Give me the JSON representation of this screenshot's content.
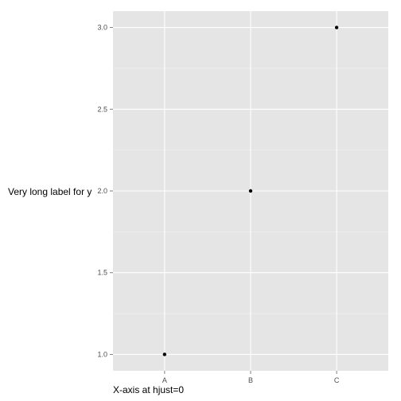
{
  "chart_data": {
    "type": "scatter",
    "categories": [
      "A",
      "B",
      "C"
    ],
    "points": [
      {
        "x": "A",
        "y": 1.0
      },
      {
        "x": "B",
        "y": 2.0
      },
      {
        "x": "C",
        "y": 3.0
      }
    ],
    "xlabel": "X-axis at hjust=0",
    "ylabel": "Very long label for y",
    "ylim": [
      0.9,
      3.1
    ],
    "yticks": [
      1.0,
      1.5,
      2.0,
      2.5,
      3.0
    ],
    "ytick_labels": [
      "1.0",
      "1.5",
      "2.0",
      "2.5",
      "3.0"
    ],
    "grid": true,
    "colors": {
      "panel": "#e5e5e5",
      "grid_major": "#ffffff",
      "grid_minor": "#f2f2f2",
      "point": "#000000",
      "tick": "#7f7f7f"
    }
  }
}
